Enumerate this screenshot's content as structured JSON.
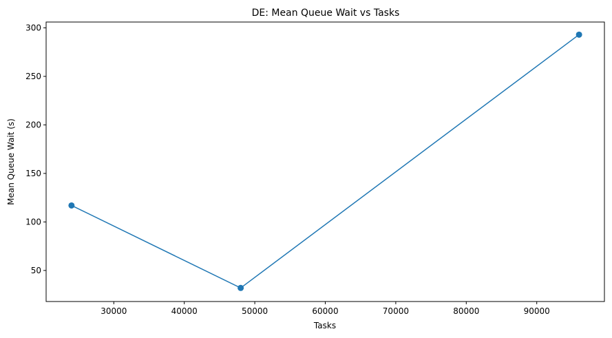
{
  "chart_data": {
    "type": "line",
    "title": "DE: Mean Queue Wait vs Tasks",
    "xlabel": "Tasks",
    "ylabel": "Mean Queue Wait (s)",
    "xlim": [
      20400,
      99600
    ],
    "ylim": [
      18,
      306
    ],
    "xticks": [
      30000,
      40000,
      50000,
      60000,
      70000,
      80000,
      90000
    ],
    "yticks": [
      50,
      100,
      150,
      200,
      250,
      300
    ],
    "grid": false,
    "series": [
      {
        "color": "#1f77b4",
        "marker": "circle",
        "x": [
          24000,
          48000,
          96000
        ],
        "y": [
          117,
          32,
          293
        ]
      }
    ]
  }
}
